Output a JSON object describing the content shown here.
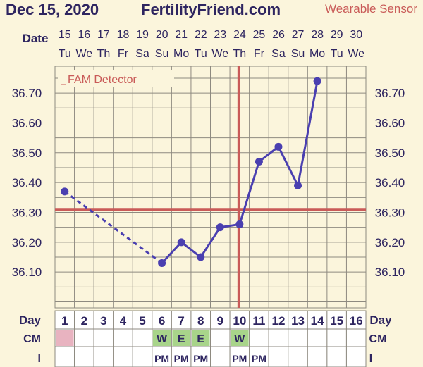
{
  "header": {
    "date": "Dec 15, 2020",
    "site": "FertilityFriend.com",
    "sensor": "Wearable Sensor"
  },
  "row_labels": {
    "date": "Date",
    "day": "Day",
    "cm": "CM",
    "intercourse": "I"
  },
  "legend_label": "FAM Detector",
  "colors": {
    "background": "#fbf5dc",
    "grid": "#8e8a80",
    "line": "#4a3fb0",
    "coverline": "#c95b58",
    "ovulation_line": "#c95b58",
    "cm_fertile": "#a8d48a",
    "period": "#e8b3c0",
    "text": "#2e2560"
  },
  "chart_data": {
    "type": "line",
    "dates": [
      "15",
      "16",
      "17",
      "18",
      "19",
      "20",
      "21",
      "22",
      "23",
      "24",
      "25",
      "26",
      "27",
      "28",
      "29",
      "30"
    ],
    "weekdays": [
      "Tu",
      "We",
      "Th",
      "Fr",
      "Sa",
      "Su",
      "Mo",
      "Tu",
      "We",
      "Th",
      "Fr",
      "Sa",
      "Su",
      "Mo",
      "Tu",
      "We"
    ],
    "days": [
      "1",
      "2",
      "3",
      "4",
      "5",
      "6",
      "7",
      "8",
      "9",
      "10",
      "11",
      "12",
      "13",
      "14",
      "15",
      "16"
    ],
    "temps": [
      36.37,
      null,
      null,
      null,
      null,
      36.13,
      36.2,
      36.15,
      36.25,
      36.26,
      36.47,
      36.52,
      36.39,
      36.74,
      null,
      null
    ],
    "y_ticks": [
      "36.10",
      "36.20",
      "36.30",
      "36.40",
      "36.50",
      "36.60",
      "36.70"
    ],
    "ylim": [
      35.98,
      36.79
    ],
    "coverline": 36.31,
    "ovulation_day": 10,
    "cm": [
      "",
      "",
      "",
      "",
      "",
      "W",
      "E",
      "E",
      "",
      "W",
      "",
      "",
      "",
      "",
      "",
      ""
    ],
    "period_days": [
      1
    ],
    "intercourse": [
      "",
      "",
      "",
      "",
      "",
      "PM",
      "PM",
      "PM",
      "",
      "PM",
      "PM",
      "",
      "",
      "",
      "",
      ""
    ]
  }
}
